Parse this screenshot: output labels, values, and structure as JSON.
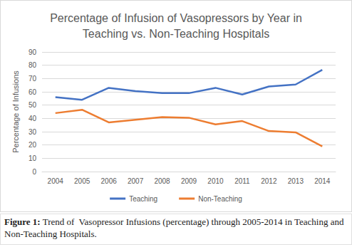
{
  "chart_data": {
    "type": "line",
    "title": "Percentage of Infusion of Vasopressors by Year in\nTeaching vs. Non-Teaching Hospitals",
    "y_label": "Percentage of Infusions",
    "caption": {
      "label": "Figure 1:",
      "text": "Trend of  Vasopressor Infusions (percentage) through 2005-2014 in Teaching and Non-Teaching Hospitals."
    },
    "categories": [
      "2004",
      "2005",
      "2006",
      "2007",
      "2008",
      "2009",
      "2010",
      "2011",
      "2012",
      "2013",
      "2014"
    ],
    "series": [
      {
        "name": "Teaching",
        "color": "#4472c4",
        "values": [
          56,
          54,
          63,
          60.5,
          59,
          59,
          63,
          58,
          64,
          65.5,
          76.5
        ]
      },
      {
        "name": "Non-Teaching",
        "color": "#ed7d31",
        "values": [
          44,
          46.5,
          37,
          39,
          41,
          40.5,
          35.5,
          38,
          30.5,
          29.5,
          19
        ]
      }
    ],
    "ylim": [
      0,
      90
    ],
    "yticks": [
      0,
      10,
      20,
      30,
      40,
      50,
      60,
      70,
      80,
      90
    ],
    "grid": true,
    "legend": "bottom",
    "line_style": "solid",
    "marker": "none"
  }
}
